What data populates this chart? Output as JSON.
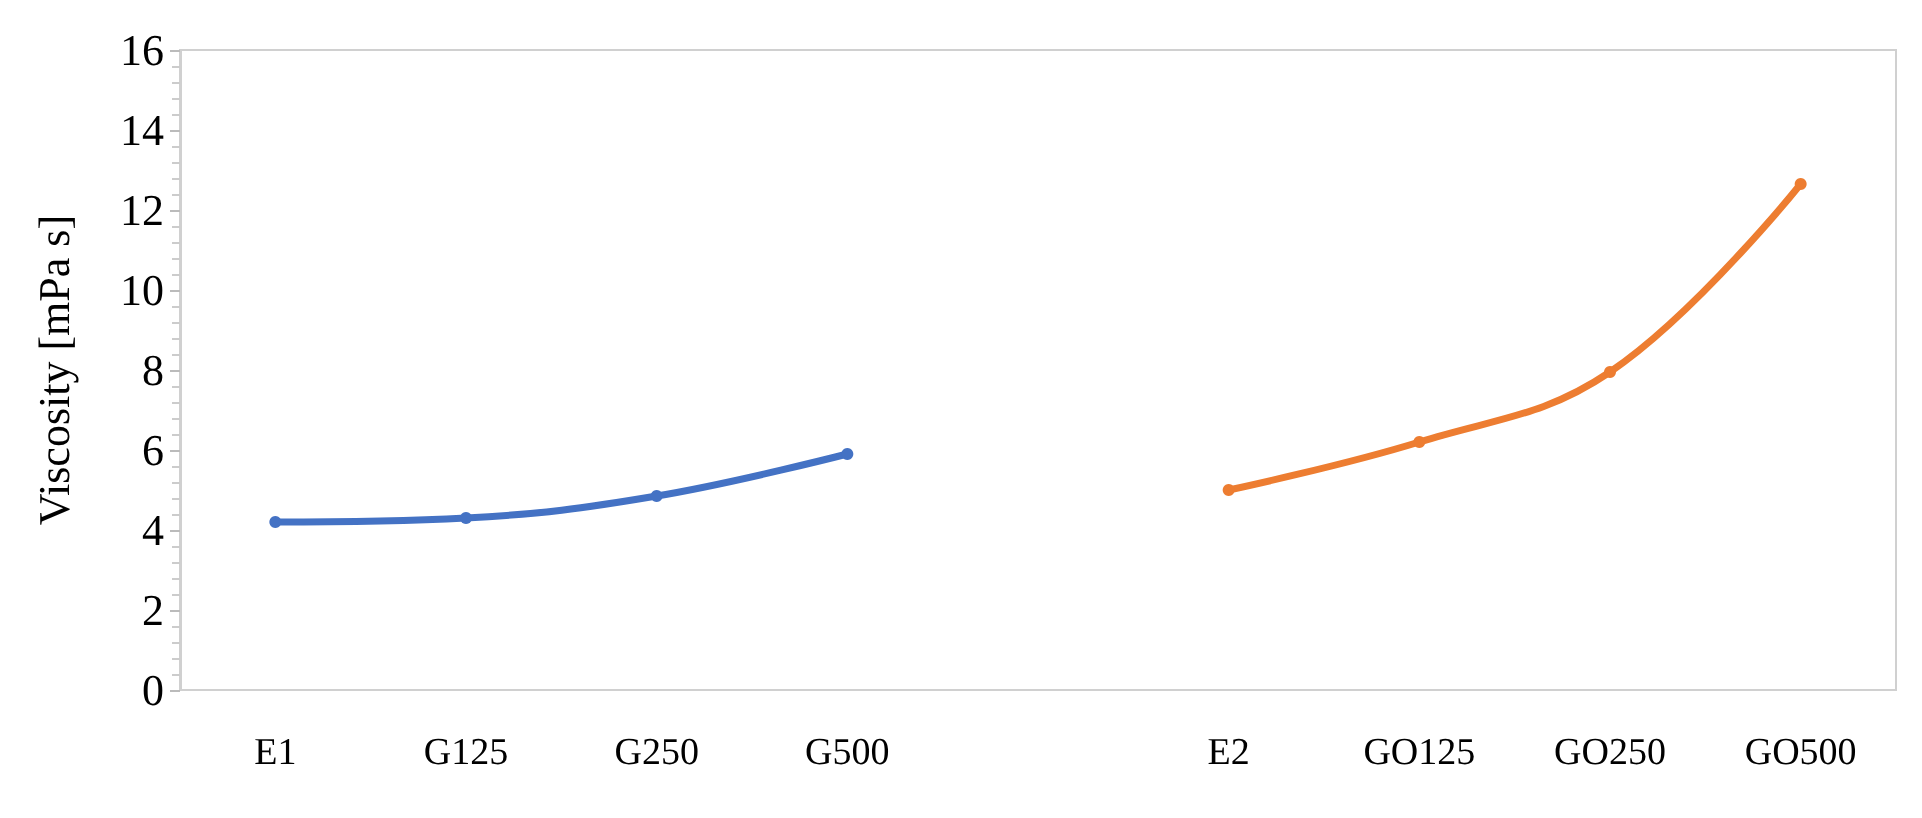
{
  "chart_data": {
    "type": "line",
    "ylabel": "Viscosity [mPa s]",
    "categories": [
      "E1",
      "G125",
      "G250",
      "G500",
      null,
      "E2",
      "GO125",
      "GO250",
      "GO500"
    ],
    "series": [
      {
        "color": "#4472c4",
        "values": [
          4.2,
          4.3,
          4.85,
          5.9,
          null,
          null,
          null,
          null,
          null
        ]
      },
      {
        "color": "#ed7d31",
        "values": [
          null,
          null,
          null,
          null,
          null,
          5.0,
          6.2,
          7.95,
          12.65
        ]
      }
    ],
    "ylim": [
      0,
      16
    ],
    "yticks": [
      0,
      2,
      4,
      6,
      8,
      10,
      12,
      14,
      16
    ],
    "grid": false,
    "marker": "circle",
    "line_style": "solid"
  }
}
